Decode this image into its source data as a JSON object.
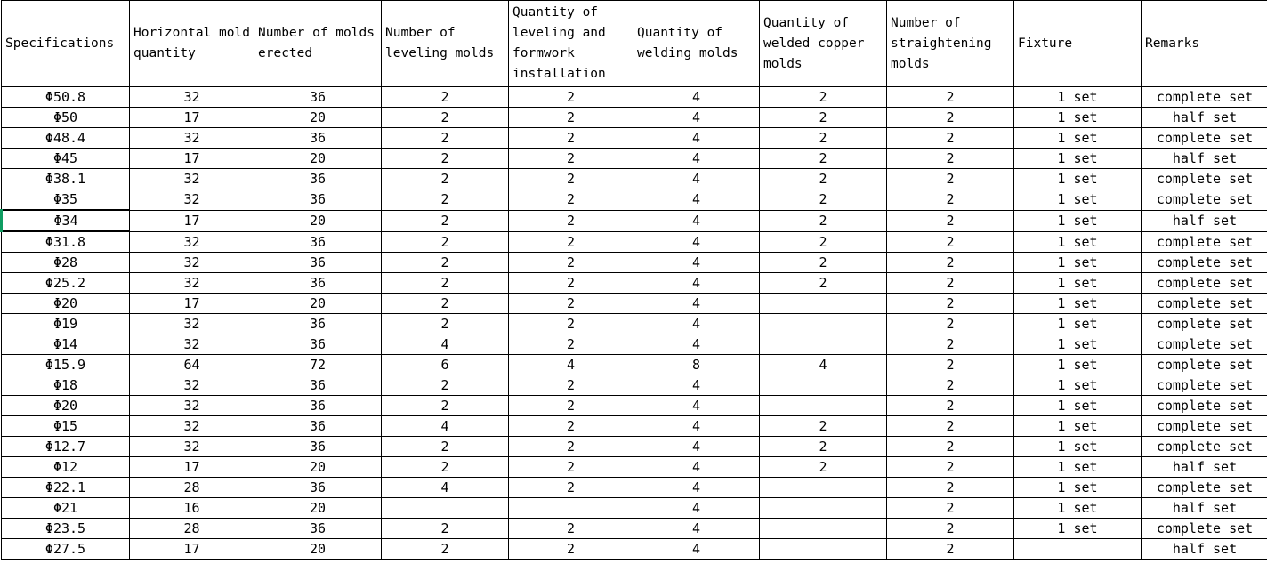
{
  "table": {
    "columns": [
      "Specifications",
      "Horizontal mold quantity",
      "Number of molds erected",
      "Number of leveling molds",
      "Quantity of leveling and formwork installation",
      "Quantity of welding molds",
      "Quantity of welded copper molds",
      "Number of straightening molds",
      "Fixture",
      "Remarks"
    ],
    "rows": [
      [
        "Φ50.8",
        "32",
        "36",
        "2",
        "2",
        "4",
        "2",
        "2",
        "1 set",
        "complete set"
      ],
      [
        "Φ50",
        "17",
        "20",
        "2",
        "2",
        "4",
        "2",
        "2",
        "1 set",
        "half set"
      ],
      [
        "Φ48.4",
        "32",
        "36",
        "2",
        "2",
        "4",
        "2",
        "2",
        "1 set",
        "complete set"
      ],
      [
        "Φ45",
        "17",
        "20",
        "2",
        "2",
        "4",
        "2",
        "2",
        "1 set",
        "half set"
      ],
      [
        "Φ38.1",
        "32",
        "36",
        "2",
        "2",
        "4",
        "2",
        "2",
        "1 set",
        "complete set"
      ],
      [
        "Φ35",
        "32",
        "36",
        "2",
        "2",
        "4",
        "2",
        "2",
        "1 set",
        "complete set"
      ],
      [
        "Φ34",
        "17",
        "20",
        "2",
        "2",
        "4",
        "2",
        "2",
        "1 set",
        "half set"
      ],
      [
        "Φ31.8",
        "32",
        "36",
        "2",
        "2",
        "4",
        "2",
        "2",
        "1 set",
        "complete set"
      ],
      [
        "Φ28",
        "32",
        "36",
        "2",
        "2",
        "4",
        "2",
        "2",
        "1 set",
        "complete set"
      ],
      [
        "Φ25.2",
        "32",
        "36",
        "2",
        "2",
        "4",
        "2",
        "2",
        "1 set",
        "complete set"
      ],
      [
        "Φ20",
        "17",
        "20",
        "2",
        "2",
        "4",
        "",
        "2",
        "1 set",
        "complete set"
      ],
      [
        "Φ19",
        "32",
        "36",
        "2",
        "2",
        "4",
        "",
        "2",
        "1 set",
        "complete set"
      ],
      [
        "Φ14",
        "32",
        "36",
        "4",
        "2",
        "4",
        "",
        "2",
        "1 set",
        "complete set"
      ],
      [
        "Φ15.9",
        "64",
        "72",
        "6",
        "4",
        "8",
        "4",
        "2",
        "1 set",
        "complete set"
      ],
      [
        "Φ18",
        "32",
        "36",
        "2",
        "2",
        "4",
        "",
        "2",
        "1 set",
        "complete set"
      ],
      [
        "Φ20",
        "32",
        "36",
        "2",
        "2",
        "4",
        "",
        "2",
        "1 set",
        "complete set"
      ],
      [
        "Φ15",
        "32",
        "36",
        "4",
        "2",
        "4",
        "2",
        "2",
        "1 set",
        "complete set"
      ],
      [
        "Φ12.7",
        "32",
        "36",
        "2",
        "2",
        "4",
        "2",
        "2",
        "1 set",
        "complete set"
      ],
      [
        "Φ12",
        "17",
        "20",
        "2",
        "2",
        "4",
        "2",
        "2",
        "1 set",
        "half set"
      ],
      [
        "Φ22.1",
        "28",
        "36",
        "4",
        "2",
        "4",
        "",
        "2",
        "1 set",
        "complete set"
      ],
      [
        "Φ21",
        "16",
        "20",
        "",
        "",
        "4",
        "",
        "2",
        "1 set",
        "half set"
      ],
      [
        "Φ23.5",
        "28",
        "36",
        "2",
        "2",
        "4",
        "",
        "2",
        "1 set",
        "complete set"
      ],
      [
        "Φ27.5",
        "17",
        "20",
        "2",
        "2",
        "4",
        "",
        "2",
        "",
        "half set"
      ]
    ],
    "selection": {
      "row_index": 6,
      "col_index": 0,
      "selected_spec": "Φ34",
      "color": "#0f9d62"
    }
  }
}
